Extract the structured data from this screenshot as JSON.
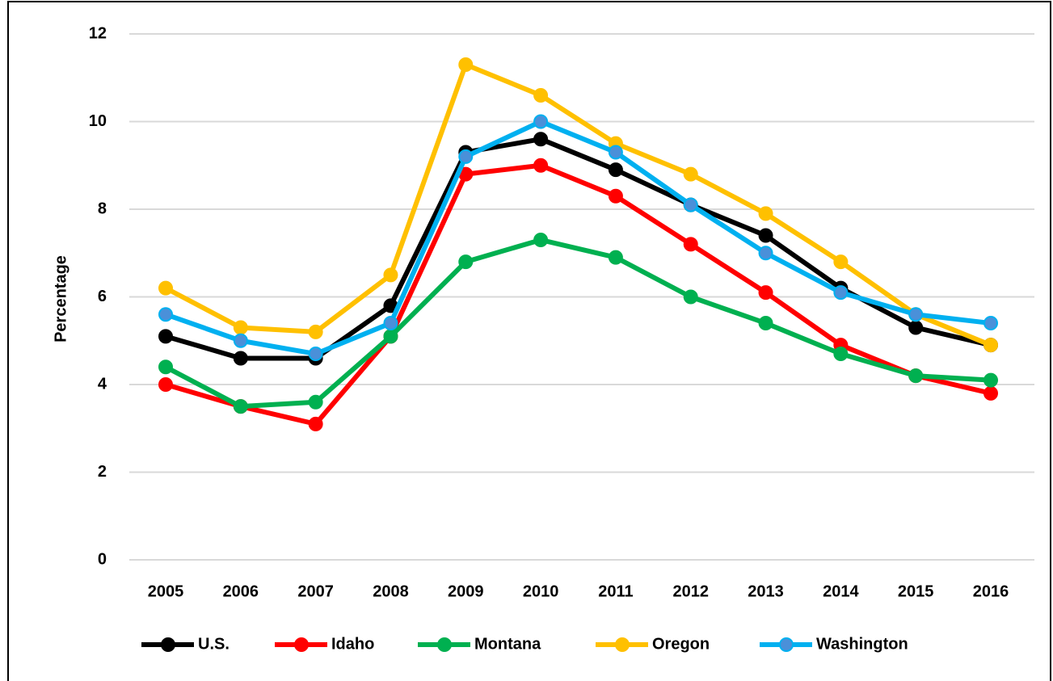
{
  "chart_data": {
    "type": "line",
    "y_label": "Percentage",
    "x": [
      "2005",
      "2006",
      "2007",
      "2008",
      "2009",
      "2010",
      "2011",
      "2012",
      "2013",
      "2014",
      "2015",
      "2016"
    ],
    "ylim": [
      0,
      12
    ],
    "yticks": [
      0,
      2,
      4,
      6,
      8,
      10,
      12
    ],
    "grid": true,
    "legend": "bottom",
    "series": [
      {
        "name": "U.S.",
        "color": "#000000",
        "values": [
          5.1,
          4.6,
          4.6,
          5.8,
          9.3,
          9.6,
          8.9,
          8.1,
          7.4,
          6.2,
          5.3,
          4.9
        ]
      },
      {
        "name": "Idaho",
        "color": "#ff0000",
        "values": [
          4.0,
          3.5,
          3.1,
          5.1,
          8.8,
          9.0,
          8.3,
          7.2,
          6.1,
          4.9,
          4.2,
          3.8
        ]
      },
      {
        "name": "Montana",
        "color": "#00b050",
        "values": [
          4.4,
          3.5,
          3.6,
          5.1,
          6.8,
          7.3,
          6.9,
          6.0,
          5.4,
          4.7,
          4.2,
          4.1
        ]
      },
      {
        "name": "Oregon",
        "color": "#ffc000",
        "values": [
          6.2,
          5.3,
          5.2,
          6.5,
          11.3,
          10.6,
          9.5,
          8.8,
          7.9,
          6.8,
          5.6,
          4.9
        ]
      },
      {
        "name": "Washington",
        "color": "#00b0f0",
        "values": [
          5.6,
          5.0,
          4.7,
          5.4,
          9.2,
          10.0,
          9.3,
          8.1,
          7.0,
          6.1,
          5.6,
          5.4
        ]
      }
    ]
  }
}
